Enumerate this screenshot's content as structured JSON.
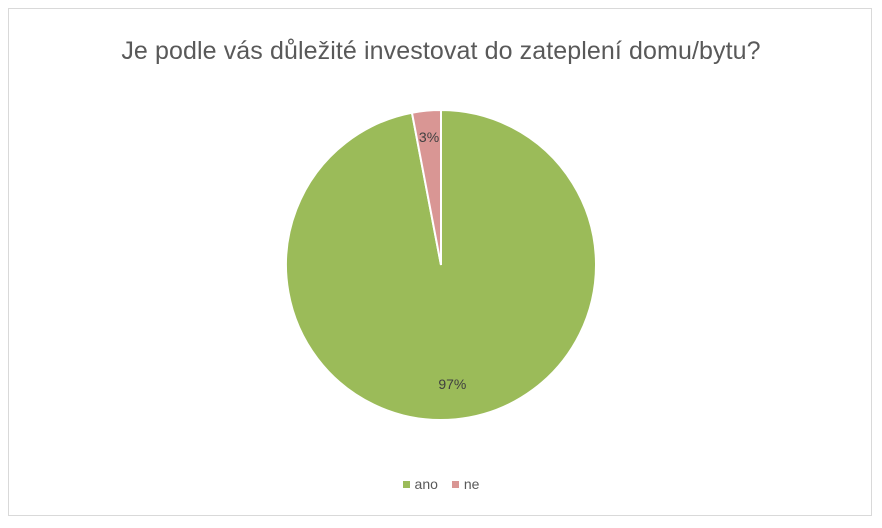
{
  "chart_data": {
    "type": "pie",
    "title": "Je podle vás důležité investovat do zateplení domu/bytu?",
    "categories": [
      "ano",
      "ne"
    ],
    "values": [
      97,
      3
    ],
    "data_labels": [
      "97%",
      "3%"
    ],
    "colors": [
      "#9bbb59",
      "#d99694"
    ],
    "legend_position": "bottom",
    "start_angle": "top, clockwise"
  }
}
